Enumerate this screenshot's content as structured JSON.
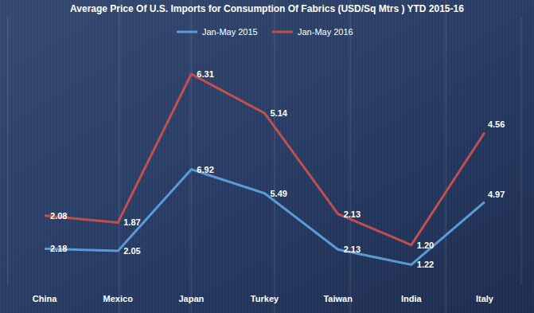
{
  "chart_data": {
    "type": "line",
    "title": "Average Price Of U.S. Imports for Consumption Of Fabrics (USD/Sq Mtrs ) YTD 2015-16",
    "categories": [
      "China",
      "Mexico",
      "Japan",
      "Turkey",
      "Taiwan",
      "India",
      "Italy"
    ],
    "series": [
      {
        "name": "Jan-May 2015",
        "color": "#5b9bd5",
        "values": [
          2.18,
          2.05,
          6.92,
          5.49,
          2.13,
          1.22,
          4.97
        ]
      },
      {
        "name": "Jan-May 2016",
        "color": "#c0504d",
        "axis": "y2",
        "values": [
          2.08,
          1.87,
          6.31,
          5.14,
          2.13,
          1.2,
          4.56
        ],
        "value_labels": [
          "2.08",
          "1.87",
          "6.31",
          "5.14",
          "2.13",
          "1.20",
          "4.56"
        ]
      }
    ],
    "ylim": [
      0,
      16
    ],
    "y2lim": [
      0,
      8
    ],
    "grid": false,
    "legend": "top",
    "data_labels": true,
    "tick_labels": "x"
  }
}
